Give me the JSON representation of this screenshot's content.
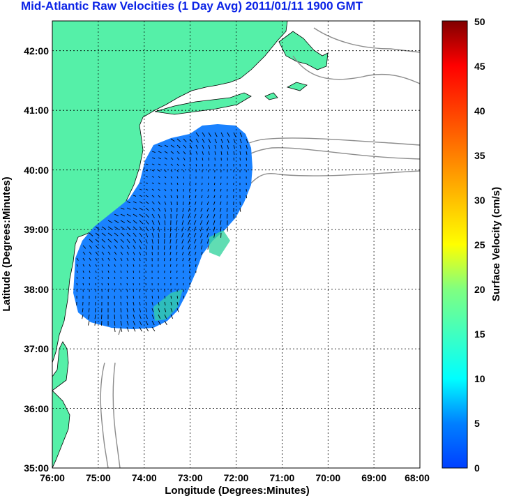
{
  "title": "Mid-Atlantic Raw Velocities (1 Day Avg) 2011/01/11 1900 GMT",
  "map": {
    "xlabel": "Longitude (Degrees:Minutes)",
    "ylabel": "Latitude (Degrees:Minutes)",
    "x_ticks": [
      "76:00",
      "75:00",
      "74:00",
      "73:00",
      "72:00",
      "71:00",
      "70:00",
      "69:00",
      "68:00"
    ],
    "y_ticks": [
      "42:00",
      "41:00",
      "40:00",
      "39:00",
      "38:00",
      "37:00",
      "36:00",
      "35:00"
    ],
    "lon_range": [
      -76,
      -68
    ],
    "lat_range": [
      35,
      42.5
    ],
    "grid": "dotted",
    "land_color": "#55f0a8",
    "ocean_color": "#ffffff",
    "current_field_color": "#1a82ff"
  },
  "colorbar": {
    "label": "Surface Velocity (cm/s)",
    "ticks": [
      "50",
      "45",
      "40",
      "35",
      "30",
      "25",
      "20",
      "15",
      "10",
      "5",
      "0"
    ],
    "min": 0,
    "max": 50
  }
}
